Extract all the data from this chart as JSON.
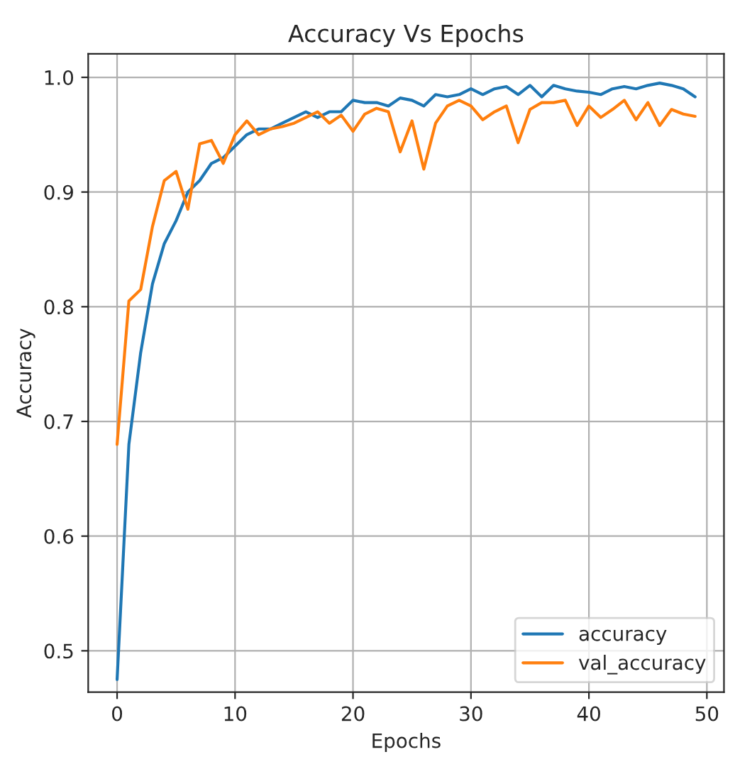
{
  "chart_data": {
    "type": "line",
    "title": "Accuracy Vs Epochs",
    "xlabel": "Epochs",
    "ylabel": "Accuracy",
    "x": [
      0,
      1,
      2,
      3,
      4,
      5,
      6,
      7,
      8,
      9,
      10,
      11,
      12,
      13,
      14,
      15,
      16,
      17,
      18,
      19,
      20,
      21,
      22,
      23,
      24,
      25,
      26,
      27,
      28,
      29,
      30,
      31,
      32,
      33,
      34,
      35,
      36,
      37,
      38,
      39,
      40,
      41,
      42,
      43,
      44,
      45,
      46,
      47,
      48,
      49
    ],
    "series": [
      {
        "name": "accuracy",
        "color": "#1f77b4",
        "values": [
          0.475,
          0.68,
          0.76,
          0.82,
          0.855,
          0.875,
          0.9,
          0.91,
          0.925,
          0.93,
          0.94,
          0.95,
          0.955,
          0.955,
          0.96,
          0.965,
          0.97,
          0.965,
          0.97,
          0.97,
          0.98,
          0.978,
          0.978,
          0.975,
          0.982,
          0.98,
          0.975,
          0.985,
          0.983,
          0.985,
          0.99,
          0.985,
          0.99,
          0.992,
          0.985,
          0.993,
          0.983,
          0.993,
          0.99,
          0.988,
          0.987,
          0.985,
          0.99,
          0.992,
          0.99,
          0.993,
          0.995,
          0.993,
          0.99,
          0.983
        ]
      },
      {
        "name": "val_accuracy",
        "color": "#ff7f0e",
        "values": [
          0.68,
          0.805,
          0.815,
          0.87,
          0.91,
          0.918,
          0.885,
          0.942,
          0.945,
          0.925,
          0.95,
          0.962,
          0.95,
          0.955,
          0.957,
          0.96,
          0.965,
          0.97,
          0.96,
          0.967,
          0.953,
          0.968,
          0.973,
          0.97,
          0.935,
          0.962,
          0.92,
          0.96,
          0.975,
          0.98,
          0.975,
          0.963,
          0.97,
          0.975,
          0.943,
          0.972,
          0.978,
          0.978,
          0.98,
          0.958,
          0.975,
          0.965,
          0.972,
          0.98,
          0.963,
          0.978,
          0.958,
          0.972,
          0.968,
          0.966
        ]
      }
    ],
    "xlim": [
      -2.45,
      51.45
    ],
    "xticks": [
      0,
      10,
      20,
      30,
      40,
      50
    ],
    "ylim": [
      0.464,
      1.0205
    ],
    "yticks": [
      0.5,
      0.6,
      0.7,
      0.8,
      0.9,
      {
        "value": 1.0,
        "label": "1.0"
      }
    ],
    "grid": true,
    "legend": "bottom right",
    "marker": "none",
    "line_style": "solid"
  }
}
